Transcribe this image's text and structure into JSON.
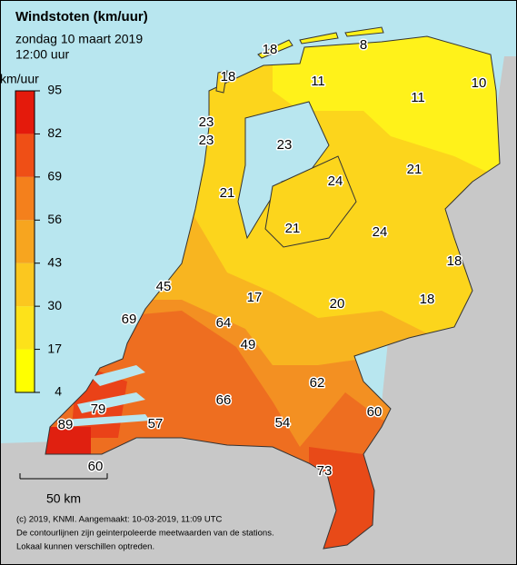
{
  "header": {
    "title": "Windstoten (km/uur)",
    "date": "zondag 10 maart 2019",
    "time": "12:00 uur"
  },
  "legend": {
    "unit": "km/uur",
    "ticks": [
      95,
      82,
      69,
      56,
      43,
      30,
      17,
      4
    ],
    "colors": [
      "#e41a0c",
      "#ef4f16",
      "#f4801c",
      "#f7a51f",
      "#fbc71f",
      "#fde21a",
      "#ffff00"
    ]
  },
  "stations": [
    18,
    8,
    18,
    11,
    11,
    10,
    23,
    23,
    23,
    24,
    21,
    21,
    21,
    24,
    18,
    45,
    17,
    20,
    18,
    69,
    64,
    49,
    62,
    66,
    79,
    60,
    57,
    54,
    89,
    73,
    60
  ],
  "scale_bar": {
    "label": "50 km"
  },
  "footer": [
    "(c) 2019, KNMI. Aangemaakt: 10-03-2019, 11:09 UTC",
    "De contourlijnen zijn geinterpoleerde meetwaarden van de stations.",
    "Lokaal kunnen verschillen optreden."
  ]
}
